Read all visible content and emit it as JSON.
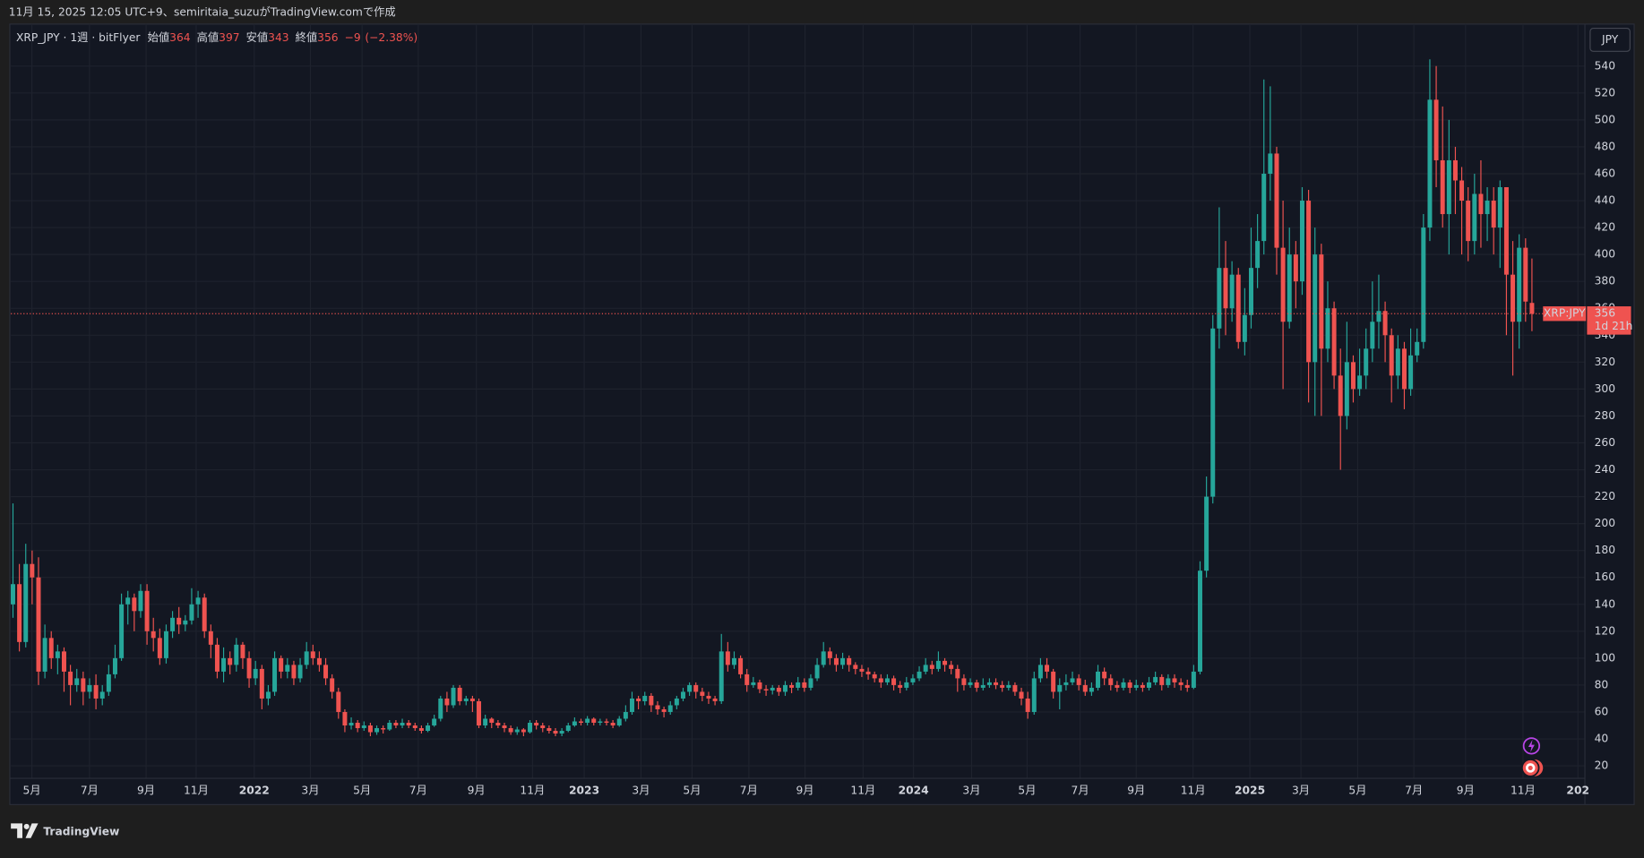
{
  "caption": "11月 15, 2025 12:05 UTC+9、semiritaia_suzuがTradingView.comで作成",
  "brand": "TradingView",
  "chart_data": {
    "type": "candlestick",
    "symbol": "XRP_JPY · 1週 · bitFlyer",
    "ohlc_labels": [
      "始値",
      "高値",
      "安値",
      "終値"
    ],
    "change": "−9",
    "change_pct": "(−2.38%)",
    "currency": "JPY",
    "price_label": "XRP:JPY",
    "countdown": "1d 21h",
    "up_color": "#26a69a",
    "down_color": "#ef5350",
    "grid": true,
    "ylim": [
      -8.8,
      571.2
    ],
    "yticks": [
      20,
      40,
      60,
      80,
      100,
      120,
      140,
      160,
      180,
      200,
      220,
      240,
      260,
      280,
      300,
      320,
      340,
      360,
      380,
      400,
      420,
      440,
      460,
      480,
      500,
      520,
      540
    ],
    "xlim": [
      -0.33,
      246.3
    ],
    "xticks": [
      {
        "value": 2.96,
        "label": "5月"
      },
      {
        "value": 11.99,
        "label": "7月"
      },
      {
        "value": 20.85,
        "label": "9月"
      },
      {
        "value": 28.7,
        "label": "11月"
      },
      {
        "value": 37.8,
        "label": "2022"
      },
      {
        "value": 46.6,
        "label": "3月"
      },
      {
        "value": 54.7,
        "label": "5月"
      },
      {
        "value": 63.5,
        "label": "7月"
      },
      {
        "value": 72.6,
        "label": "9月"
      },
      {
        "value": 81.4,
        "label": "11月"
      },
      {
        "value": 89.5,
        "label": "2023"
      },
      {
        "value": 98.4,
        "label": "3月"
      },
      {
        "value": 106.4,
        "label": "5月"
      },
      {
        "value": 115.3,
        "label": "7月"
      },
      {
        "value": 124.1,
        "label": "9月"
      },
      {
        "value": 133.2,
        "label": "11月"
      },
      {
        "value": 141.1,
        "label": "2024"
      },
      {
        "value": 150.2,
        "label": "3月"
      },
      {
        "value": 158.9,
        "label": "5月"
      },
      {
        "value": 167.2,
        "label": "7月"
      },
      {
        "value": 176.0,
        "label": "9月"
      },
      {
        "value": 184.9,
        "label": "11月"
      },
      {
        "value": 193.8,
        "label": "2025"
      },
      {
        "value": 201.8,
        "label": "3月"
      },
      {
        "value": 210.7,
        "label": "5月"
      },
      {
        "value": 219.5,
        "label": "7月"
      },
      {
        "value": 227.6,
        "label": "9月"
      },
      {
        "value": 236.6,
        "label": "11月"
      },
      {
        "value": 245.2,
        "label": "202"
      }
    ],
    "ohlc": [
      [
        140,
        215,
        130,
        155
      ],
      [
        155,
        170,
        105,
        112
      ],
      [
        112,
        185,
        108,
        170
      ],
      [
        170,
        180,
        140,
        160
      ],
      [
        160,
        175,
        80,
        90
      ],
      [
        90,
        125,
        85,
        115
      ],
      [
        115,
        120,
        92,
        100
      ],
      [
        100,
        110,
        88,
        105
      ],
      [
        105,
        108,
        75,
        90
      ],
      [
        90,
        95,
        65,
        80
      ],
      [
        80,
        92,
        75,
        85
      ],
      [
        85,
        90,
        65,
        75
      ],
      [
        75,
        85,
        70,
        80
      ],
      [
        80,
        88,
        62,
        70
      ],
      [
        70,
        80,
        65,
        75
      ],
      [
        75,
        95,
        72,
        88
      ],
      [
        88,
        110,
        85,
        100
      ],
      [
        100,
        148,
        98,
        140
      ],
      [
        140,
        150,
        125,
        145
      ],
      [
        145,
        148,
        120,
        135
      ],
      [
        135,
        155,
        130,
        150
      ],
      [
        150,
        155,
        110,
        120
      ],
      [
        120,
        130,
        105,
        115
      ],
      [
        115,
        122,
        95,
        100
      ],
      [
        100,
        125,
        96,
        120
      ],
      [
        120,
        135,
        115,
        130
      ],
      [
        130,
        138,
        118,
        125
      ],
      [
        125,
        132,
        120,
        128
      ],
      [
        128,
        152,
        125,
        140
      ],
      [
        140,
        150,
        130,
        145
      ],
      [
        145,
        148,
        115,
        120
      ],
      [
        120,
        125,
        100,
        110
      ],
      [
        110,
        115,
        85,
        90
      ],
      [
        90,
        108,
        82,
        100
      ],
      [
        100,
        105,
        88,
        95
      ],
      [
        95,
        115,
        90,
        110
      ],
      [
        110,
        112,
        92,
        100
      ],
      [
        100,
        105,
        78,
        85
      ],
      [
        85,
        98,
        80,
        92
      ],
      [
        92,
        95,
        62,
        70
      ],
      [
        70,
        80,
        65,
        75
      ],
      [
        75,
        105,
        72,
        100
      ],
      [
        100,
        102,
        85,
        90
      ],
      [
        90,
        100,
        85,
        95
      ],
      [
        95,
        98,
        80,
        85
      ],
      [
        85,
        100,
        82,
        95
      ],
      [
        95,
        112,
        92,
        105
      ],
      [
        105,
        110,
        95,
        100
      ],
      [
        100,
        105,
        90,
        95
      ],
      [
        95,
        100,
        80,
        85
      ],
      [
        85,
        88,
        70,
        75
      ],
      [
        75,
        78,
        55,
        60
      ],
      [
        60,
        62,
        45,
        50
      ],
      [
        50,
        56,
        47,
        52
      ],
      [
        52,
        54,
        45,
        48
      ],
      [
        48,
        53,
        46,
        50
      ],
      [
        50,
        52,
        42,
        45
      ],
      [
        45,
        50,
        43,
        48
      ],
      [
        48,
        50,
        44,
        47
      ],
      [
        47,
        54,
        46,
        52
      ],
      [
        52,
        54,
        48,
        50
      ],
      [
        50,
        55,
        48,
        52
      ],
      [
        52,
        54,
        48,
        50
      ],
      [
        50,
        52,
        46,
        48
      ],
      [
        48,
        50,
        44,
        46
      ],
      [
        46,
        52,
        45,
        50
      ],
      [
        50,
        58,
        49,
        55
      ],
      [
        55,
        72,
        53,
        70
      ],
      [
        70,
        75,
        60,
        65
      ],
      [
        65,
        80,
        63,
        78
      ],
      [
        78,
        80,
        65,
        68
      ],
      [
        68,
        72,
        65,
        70
      ],
      [
        70,
        72,
        60,
        68
      ],
      [
        68,
        70,
        48,
        50
      ],
      [
        50,
        58,
        48,
        55
      ],
      [
        55,
        56,
        48,
        52
      ],
      [
        52,
        54,
        48,
        50
      ],
      [
        50,
        52,
        45,
        48
      ],
      [
        48,
        50,
        43,
        45
      ],
      [
        45,
        49,
        43,
        47
      ],
      [
        47,
        48,
        42,
        45
      ],
      [
        45,
        54,
        44,
        52
      ],
      [
        52,
        54,
        47,
        50
      ],
      [
        50,
        52,
        45,
        48
      ],
      [
        48,
        50,
        44,
        46
      ],
      [
        46,
        48,
        42,
        44
      ],
      [
        44,
        48,
        42,
        46
      ],
      [
        46,
        52,
        45,
        50
      ],
      [
        50,
        56,
        49,
        53
      ],
      [
        53,
        55,
        50,
        52
      ],
      [
        52,
        57,
        50,
        55
      ],
      [
        55,
        56,
        50,
        52
      ],
      [
        52,
        55,
        50,
        53
      ],
      [
        53,
        55,
        50,
        52
      ],
      [
        52,
        54,
        48,
        50
      ],
      [
        50,
        57,
        49,
        55
      ],
      [
        55,
        65,
        53,
        60
      ],
      [
        60,
        75,
        58,
        70
      ],
      [
        70,
        72,
        62,
        68
      ],
      [
        68,
        75,
        65,
        72
      ],
      [
        72,
        74,
        60,
        65
      ],
      [
        65,
        68,
        58,
        62
      ],
      [
        62,
        64,
        56,
        60
      ],
      [
        60,
        68,
        58,
        65
      ],
      [
        65,
        72,
        62,
        70
      ],
      [
        70,
        78,
        68,
        75
      ],
      [
        75,
        82,
        72,
        80
      ],
      [
        80,
        82,
        70,
        75
      ],
      [
        75,
        78,
        68,
        72
      ],
      [
        72,
        75,
        66,
        70
      ],
      [
        70,
        72,
        65,
        68
      ],
      [
        68,
        118,
        66,
        105
      ],
      [
        105,
        112,
        90,
        95
      ],
      [
        95,
        105,
        92,
        100
      ],
      [
        100,
        102,
        85,
        88
      ],
      [
        88,
        92,
        75,
        80
      ],
      [
        80,
        86,
        78,
        82
      ],
      [
        82,
        84,
        74,
        77
      ],
      [
        77,
        80,
        72,
        76
      ],
      [
        76,
        80,
        73,
        78
      ],
      [
        78,
        80,
        72,
        75
      ],
      [
        75,
        83,
        72,
        80
      ],
      [
        80,
        82,
        74,
        78
      ],
      [
        78,
        86,
        76,
        82
      ],
      [
        82,
        85,
        75,
        78
      ],
      [
        78,
        88,
        76,
        85
      ],
      [
        85,
        100,
        83,
        95
      ],
      [
        95,
        112,
        93,
        105
      ],
      [
        105,
        108,
        95,
        100
      ],
      [
        100,
        103,
        90,
        95
      ],
      [
        95,
        104,
        92,
        100
      ],
      [
        100,
        102,
        90,
        95
      ],
      [
        95,
        97,
        88,
        92
      ],
      [
        92,
        95,
        86,
        90
      ],
      [
        90,
        93,
        84,
        88
      ],
      [
        88,
        90,
        82,
        85
      ],
      [
        85,
        88,
        78,
        82
      ],
      [
        82,
        88,
        80,
        85
      ],
      [
        85,
        87,
        76,
        80
      ],
      [
        80,
        83,
        74,
        78
      ],
      [
        78,
        86,
        76,
        82
      ],
      [
        82,
        88,
        80,
        85
      ],
      [
        85,
        94,
        83,
        90
      ],
      [
        90,
        100,
        88,
        95
      ],
      [
        95,
        98,
        88,
        92
      ],
      [
        92,
        105,
        90,
        98
      ],
      [
        98,
        100,
        90,
        95
      ],
      [
        95,
        98,
        88,
        92
      ],
      [
        92,
        95,
        75,
        85
      ],
      [
        85,
        88,
        76,
        80
      ],
      [
        80,
        85,
        78,
        82
      ],
      [
        82,
        84,
        75,
        78
      ],
      [
        78,
        85,
        76,
        80
      ],
      [
        80,
        85,
        78,
        82
      ],
      [
        82,
        85,
        77,
        80
      ],
      [
        80,
        83,
        75,
        78
      ],
      [
        78,
        83,
        76,
        80
      ],
      [
        80,
        82,
        72,
        75
      ],
      [
        75,
        78,
        65,
        70
      ],
      [
        70,
        75,
        55,
        60
      ],
      [
        60,
        90,
        58,
        85
      ],
      [
        85,
        100,
        82,
        95
      ],
      [
        95,
        100,
        85,
        90
      ],
      [
        90,
        92,
        70,
        75
      ],
      [
        75,
        85,
        62,
        80
      ],
      [
        80,
        88,
        76,
        82
      ],
      [
        82,
        90,
        80,
        85
      ],
      [
        85,
        88,
        76,
        80
      ],
      [
        80,
        84,
        72,
        75
      ],
      [
        75,
        82,
        72,
        78
      ],
      [
        78,
        95,
        76,
        90
      ],
      [
        90,
        93,
        80,
        85
      ],
      [
        85,
        88,
        76,
        80
      ],
      [
        80,
        83,
        75,
        78
      ],
      [
        78,
        85,
        76,
        82
      ],
      [
        82,
        84,
        74,
        78
      ],
      [
        78,
        84,
        76,
        80
      ],
      [
        80,
        82,
        75,
        78
      ],
      [
        78,
        86,
        76,
        82
      ],
      [
        82,
        90,
        80,
        86
      ],
      [
        86,
        88,
        76,
        80
      ],
      [
        80,
        88,
        78,
        85
      ],
      [
        85,
        88,
        78,
        82
      ],
      [
        82,
        85,
        76,
        80
      ],
      [
        80,
        84,
        75,
        78
      ],
      [
        78,
        95,
        77,
        90
      ],
      [
        90,
        172,
        88,
        165
      ],
      [
        165,
        235,
        160,
        220
      ],
      [
        220,
        355,
        215,
        345
      ],
      [
        345,
        435,
        330,
        390
      ],
      [
        390,
        410,
        340,
        360
      ],
      [
        360,
        395,
        350,
        385
      ],
      [
        385,
        390,
        330,
        335
      ],
      [
        335,
        375,
        325,
        355
      ],
      [
        355,
        420,
        345,
        390
      ],
      [
        390,
        430,
        375,
        410
      ],
      [
        410,
        530,
        400,
        460
      ],
      [
        460,
        525,
        440,
        475
      ],
      [
        475,
        480,
        385,
        405
      ],
      [
        405,
        440,
        300,
        350
      ],
      [
        350,
        420,
        345,
        400
      ],
      [
        400,
        410,
        360,
        380
      ],
      [
        380,
        450,
        370,
        440
      ],
      [
        440,
        448,
        290,
        320
      ],
      [
        320,
        420,
        280,
        400
      ],
      [
        400,
        408,
        280,
        330
      ],
      [
        330,
        380,
        320,
        360
      ],
      [
        360,
        365,
        300,
        310
      ],
      [
        310,
        330,
        240,
        280
      ],
      [
        280,
        350,
        270,
        320
      ],
      [
        320,
        325,
        290,
        300
      ],
      [
        300,
        330,
        295,
        310
      ],
      [
        310,
        345,
        300,
        330
      ],
      [
        330,
        380,
        320,
        350
      ],
      [
        350,
        385,
        330,
        358
      ],
      [
        358,
        365,
        320,
        340
      ],
      [
        340,
        345,
        290,
        310
      ],
      [
        310,
        340,
        300,
        330
      ],
      [
        330,
        335,
        285,
        300
      ],
      [
        300,
        345,
        295,
        325
      ],
      [
        325,
        345,
        320,
        335
      ],
      [
        335,
        430,
        330,
        420
      ],
      [
        420,
        545,
        410,
        515
      ],
      [
        515,
        540,
        450,
        470
      ],
      [
        470,
        510,
        420,
        430
      ],
      [
        430,
        500,
        400,
        470
      ],
      [
        470,
        480,
        430,
        455
      ],
      [
        455,
        465,
        400,
        440
      ],
      [
        440,
        450,
        395,
        410
      ],
      [
        410,
        460,
        400,
        445
      ],
      [
        445,
        470,
        405,
        430
      ],
      [
        430,
        450,
        410,
        440
      ],
      [
        440,
        450,
        400,
        420
      ],
      [
        420,
        455,
        390,
        450
      ],
      [
        450,
        450,
        340,
        385
      ],
      [
        385,
        410,
        310,
        350
      ],
      [
        350,
        415,
        330,
        405
      ],
      [
        405,
        412,
        350,
        365
      ],
      [
        364,
        397,
        343,
        356
      ]
    ]
  }
}
